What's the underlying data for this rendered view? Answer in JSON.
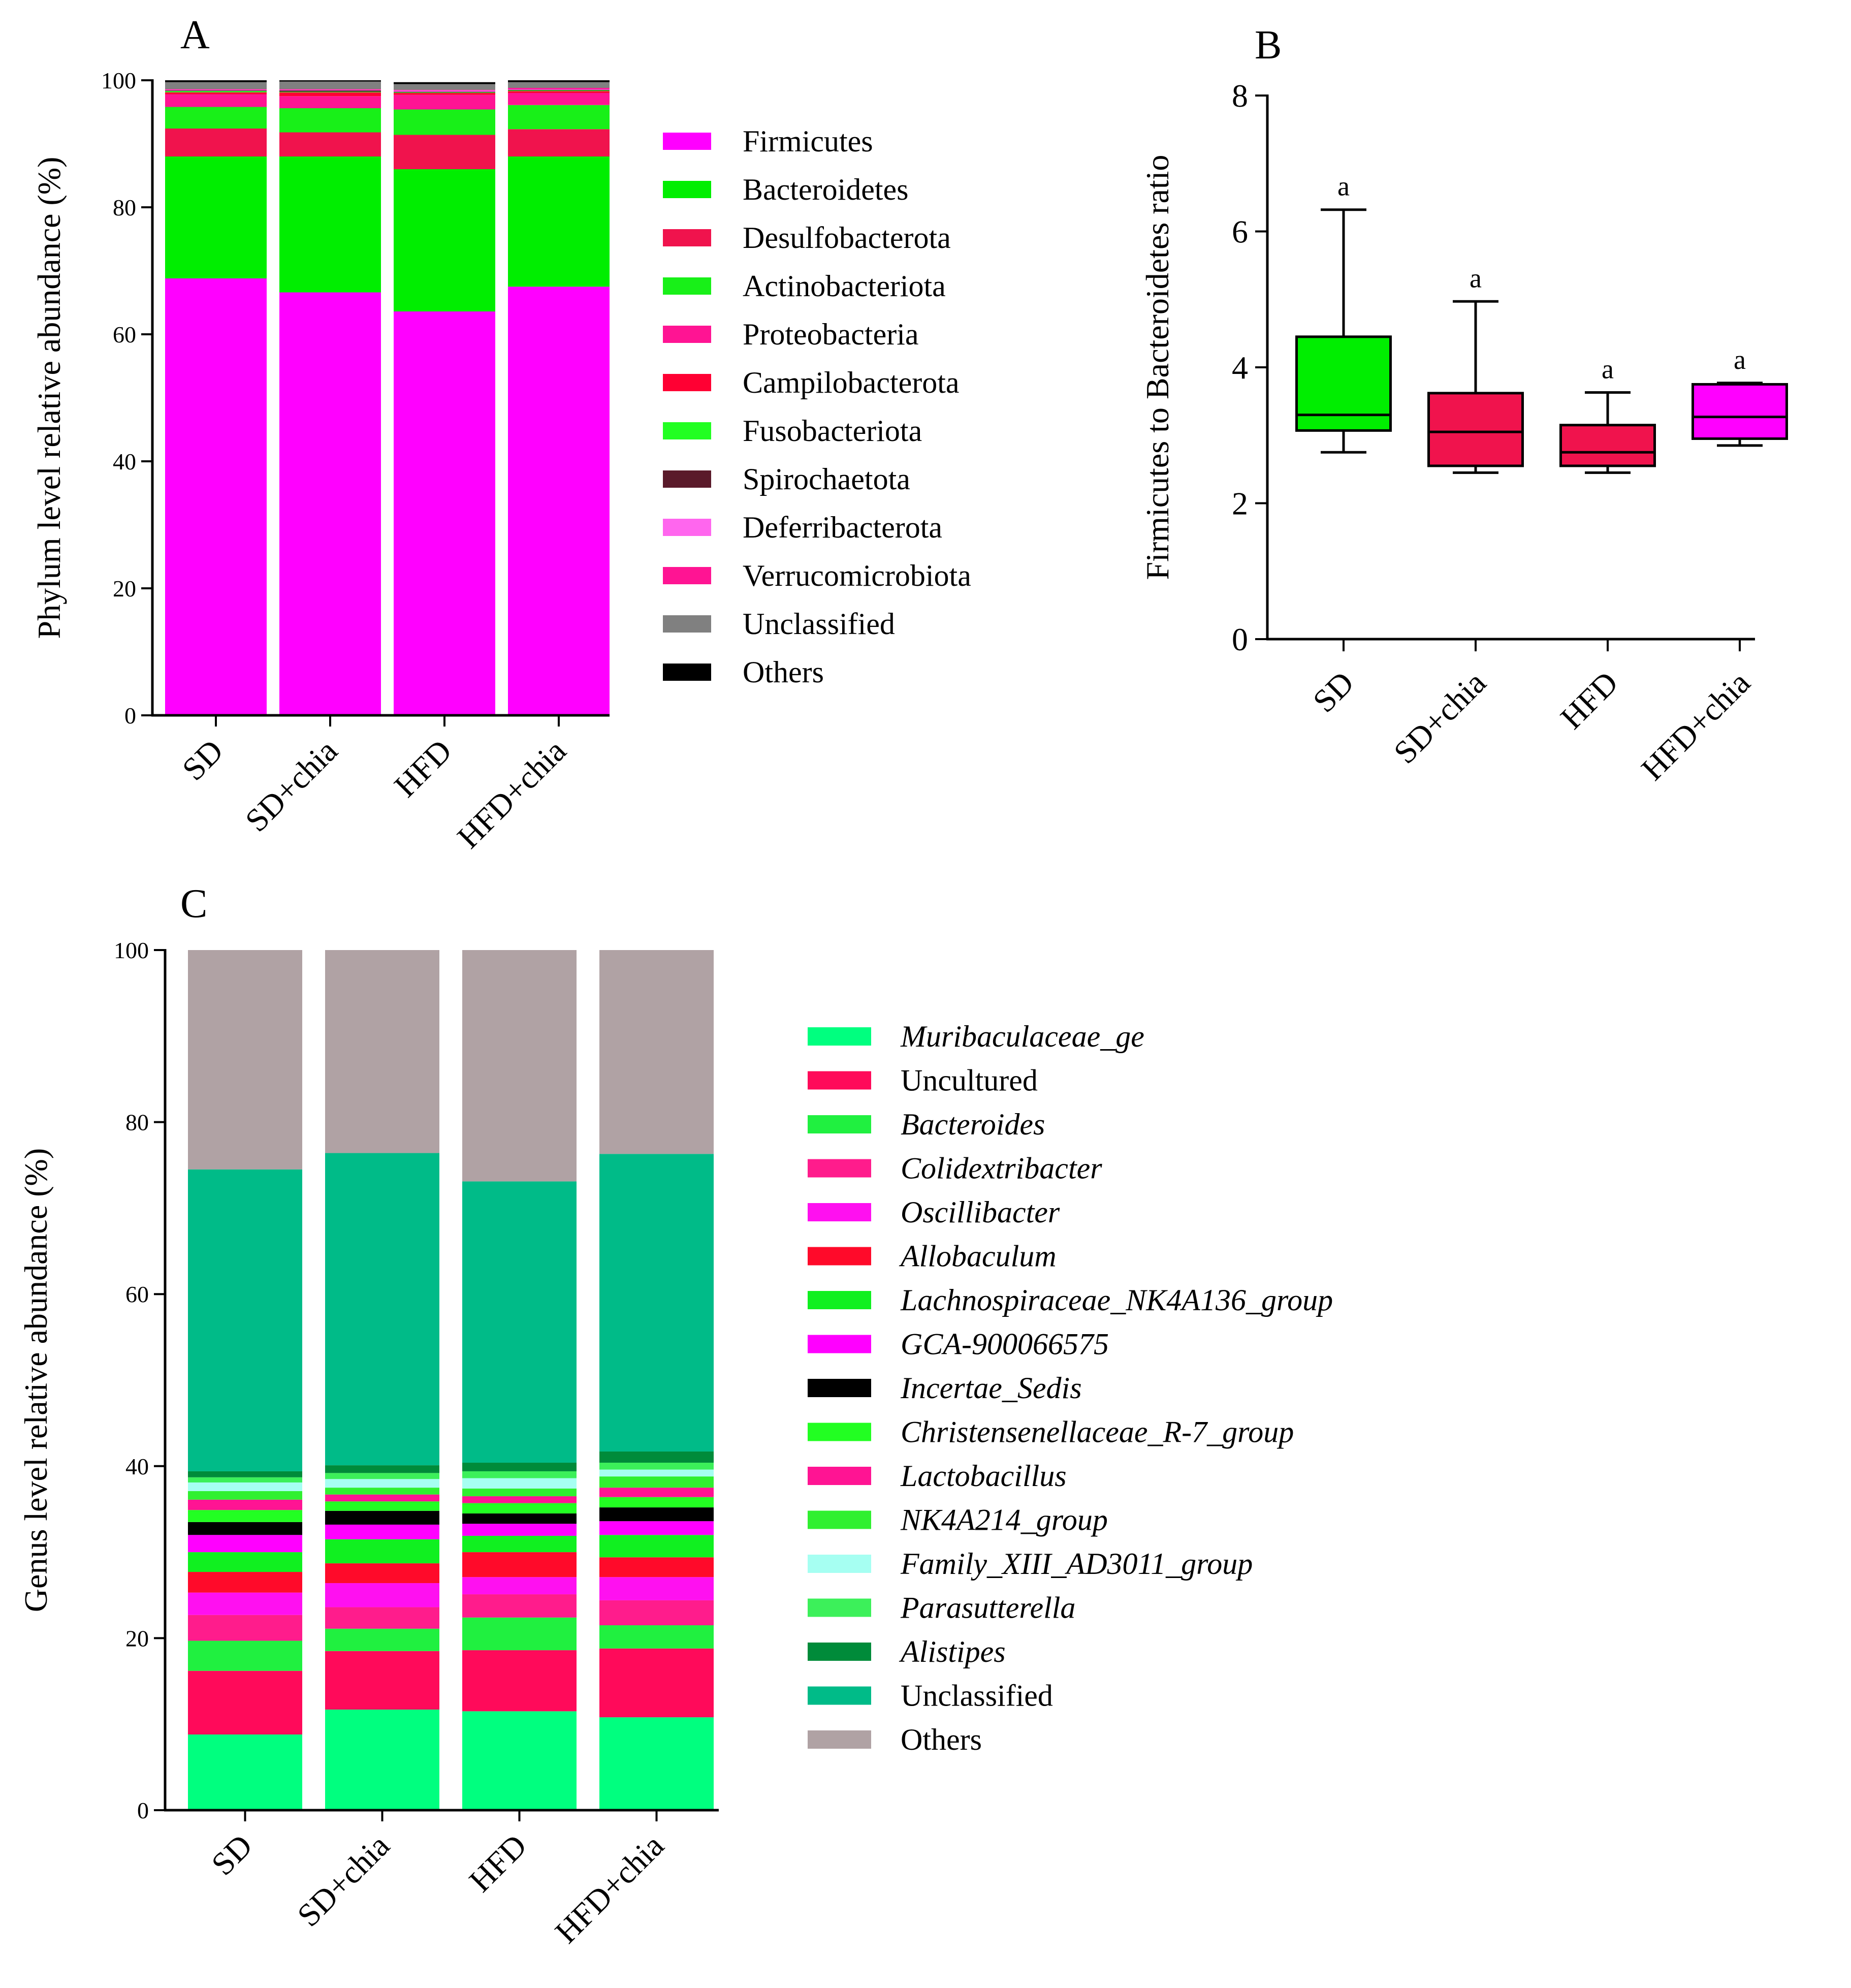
{
  "chart_data": [
    {
      "panel": "A",
      "type": "bar",
      "stacked": true,
      "ylabel": "Phylum level relative abundance (%)",
      "ylim": [
        0,
        100
      ],
      "yticks": [
        0,
        20,
        40,
        60,
        80,
        100
      ],
      "categories": [
        "SD",
        "SD+chia",
        "HFD",
        "HFD+chia"
      ],
      "series": [
        {
          "name": "Firmicutes",
          "color": "#FF00FF",
          "values": [
            68.8,
            66.6,
            63.6,
            67.5
          ]
        },
        {
          "name": "Bacteroidetes",
          "color": "#00EE00",
          "values": [
            19.2,
            21.4,
            22.4,
            20.5
          ]
        },
        {
          "name": "Desulfobacterota",
          "color": "#F0134D",
          "values": [
            4.4,
            3.8,
            5.4,
            4.3
          ]
        },
        {
          "name": "Actinobacteriota",
          "color": "#18F018",
          "values": [
            3.4,
            3.8,
            4.0,
            3.8
          ]
        },
        {
          "name": "Proteobacteria",
          "color": "#FF1493",
          "values": [
            2.0,
            1.9,
            2.3,
            1.9
          ]
        },
        {
          "name": "Campilobacterota",
          "color": "#FF0033",
          "values": [
            0.3,
            0.6,
            0.3,
            0.3
          ]
        },
        {
          "name": "Fusobacteriota",
          "color": "#22FF22",
          "values": [
            0.2,
            0.1,
            0.1,
            0.1
          ]
        },
        {
          "name": "Spirochaetota",
          "color": "#5A1A2A",
          "values": [
            0.1,
            0.2,
            0.1,
            0.1
          ]
        },
        {
          "name": "Deferribacterota",
          "color": "#FF66EE",
          "values": [
            0.1,
            0.1,
            0.2,
            0.1
          ]
        },
        {
          "name": "Verrucomicrobiota",
          "color": "#FF1493",
          "values": [
            0.1,
            0.1,
            0.1,
            0.2
          ]
        },
        {
          "name": "Unclassified",
          "color": "#808080",
          "values": [
            1.1,
            1.2,
            0.9,
            0.9
          ]
        },
        {
          "name": "Others",
          "color": "#000000",
          "values": [
            0.3,
            0.2,
            0.3,
            0.3
          ]
        }
      ]
    },
    {
      "panel": "B",
      "type": "box",
      "ylabel": "Firmicutes to Bacteroidetes ratio",
      "ylim": [
        0,
        8
      ],
      "yticks": [
        0,
        2,
        4,
        6,
        8
      ],
      "categories": [
        "SD",
        "SD+chia",
        "HFD",
        "HFD+chia"
      ],
      "boxes": [
        {
          "group": "SD",
          "min": 2.75,
          "q1": 3.07,
          "median": 3.3,
          "q3": 4.45,
          "max": 6.32,
          "color": "#00EE00",
          "label": "a"
        },
        {
          "group": "SD+chia",
          "min": 2.45,
          "q1": 2.55,
          "median": 3.05,
          "q3": 3.62,
          "max": 4.97,
          "color": "#F0134D",
          "label": "a"
        },
        {
          "group": "HFD",
          "min": 2.45,
          "q1": 2.55,
          "median": 2.75,
          "q3": 3.15,
          "max": 3.63,
          "color": "#F0134D",
          "label": "a"
        },
        {
          "group": "HFD+chia",
          "min": 2.85,
          "q1": 2.95,
          "median": 3.27,
          "q3": 3.75,
          "max": 3.77,
          "color": "#FF00FF",
          "label": "a"
        }
      ]
    },
    {
      "panel": "C",
      "type": "bar",
      "stacked": true,
      "ylabel": "Genus level relative abundance (%)",
      "ylim": [
        0,
        100
      ],
      "yticks": [
        0,
        20,
        40,
        60,
        80,
        100
      ],
      "categories": [
        "SD",
        "SD+chia",
        "HFD",
        "HFD+chia"
      ],
      "series": [
        {
          "name": "Muribaculaceae_ge",
          "italic": true,
          "color": "#00FF7F",
          "values": [
            8.8,
            11.7,
            11.5,
            10.8
          ]
        },
        {
          "name": "Uncultured",
          "italic": false,
          "color": "#FF0A5A",
          "values": [
            7.4,
            6.8,
            7.1,
            8.0
          ]
        },
        {
          "name": "Bacteroides",
          "italic": true,
          "color": "#20F040",
          "values": [
            3.5,
            2.6,
            3.8,
            2.7
          ]
        },
        {
          "name": "Colidextribacter",
          "italic": true,
          "color": "#FF1C8C",
          "values": [
            3.0,
            2.5,
            2.7,
            2.9
          ]
        },
        {
          "name": "Oscillibacter",
          "italic": true,
          "color": "#FF10F0",
          "values": [
            2.6,
            2.8,
            2.0,
            2.7
          ]
        },
        {
          "name": "Allobaculum",
          "italic": true,
          "color": "#FF0A2A",
          "values": [
            2.4,
            2.3,
            2.9,
            2.3
          ]
        },
        {
          "name": "Lachnospiraceae_NK4A136_group",
          "italic": true,
          "color": "#10F020",
          "values": [
            2.3,
            2.8,
            1.9,
            2.6
          ]
        },
        {
          "name": "GCA-900066575",
          "italic": true,
          "color": "#FF00FF",
          "values": [
            2.0,
            1.7,
            1.4,
            1.6
          ]
        },
        {
          "name": "Incertae_Sedis",
          "italic": true,
          "color": "#000000",
          "values": [
            1.5,
            1.6,
            1.2,
            1.6
          ]
        },
        {
          "name": "Christensenellaceae_R-7_group",
          "italic": true,
          "color": "#22FF22",
          "values": [
            1.4,
            1.1,
            1.2,
            1.2
          ]
        },
        {
          "name": "Lactobacillus",
          "italic": true,
          "color": "#FF1493",
          "values": [
            1.2,
            0.8,
            0.8,
            1.1
          ]
        },
        {
          "name": "NK4A214_group",
          "italic": true,
          "color": "#30F030",
          "values": [
            1.0,
            0.8,
            0.9,
            1.3
          ]
        },
        {
          "name": "Family_XIII_AD3011_group",
          "italic": true,
          "color": "#A6FFF2",
          "values": [
            1.0,
            1.0,
            1.2,
            0.8
          ]
        },
        {
          "name": "Parasutterella",
          "italic": true,
          "color": "#3CF05A",
          "values": [
            0.6,
            0.7,
            0.8,
            0.8
          ]
        },
        {
          "name": "Alistipes",
          "italic": true,
          "color": "#008B3A",
          "values": [
            0.7,
            0.9,
            1.0,
            1.3
          ]
        },
        {
          "name": "Unclassified",
          "italic": false,
          "color": "#00BB88",
          "values": [
            35.1,
            36.3,
            32.7,
            34.6
          ]
        },
        {
          "name": "Others",
          "italic": false,
          "color": "#B0A2A4",
          "values": [
            25.5,
            23.6,
            26.9,
            23.7
          ]
        }
      ]
    }
  ]
}
